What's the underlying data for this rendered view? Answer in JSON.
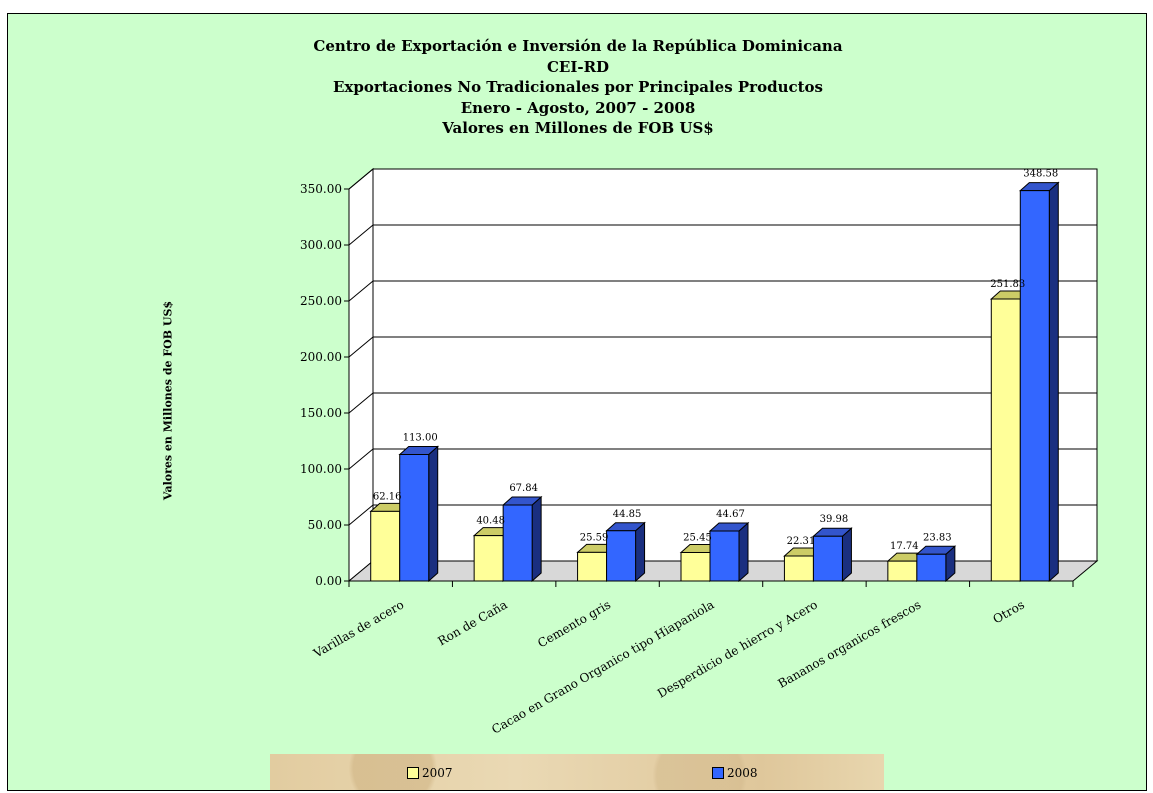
{
  "title_lines": [
    "Centro de Exportación e Inversión de la República Dominicana",
    "CEI-RD",
    "Exportaciones No Tradicionales por Principales Productos",
    "Enero - Agosto, 2007 - 2008",
    "Valores en Millones de FOB US$"
  ],
  "colors": {
    "background": "#ccffcc",
    "series_2007": "#ffff99",
    "series_2008": "#3366ff"
  },
  "chart_data": {
    "type": "bar",
    "categories": [
      "Varillas de acero",
      "Ron de Caña",
      "Cemento gris",
      "Cacao en Grano Organico tipo Hiapaniola",
      "Desperdicio de hierro y Acero",
      "Bananos organicos frescos",
      "Otros"
    ],
    "series": [
      {
        "name": "2007",
        "values": [
          62.16,
          40.48,
          25.59,
          25.45,
          22.31,
          17.74,
          251.83
        ]
      },
      {
        "name": "2008",
        "values": [
          113.0,
          67.84,
          44.85,
          44.67,
          39.98,
          23.83,
          348.58
        ]
      }
    ],
    "data_labels_2007": [
      "62.16",
      "40.48",
      "25.59",
      "25.45",
      "22.31",
      "17.74",
      "251.83"
    ],
    "data_labels_2008": [
      "113.00",
      "67.84",
      "44.85",
      "44.67",
      "39.98",
      "23.83",
      "348.58"
    ],
    "ylabel": "Valores en Millones de FOB US$",
    "ylim": [
      0,
      350
    ],
    "yticks": [
      "0.00",
      "50.00",
      "100.00",
      "150.00",
      "200.00",
      "250.00",
      "300.00",
      "350.00"
    ],
    "grid": true,
    "legend_position": "bottom"
  }
}
